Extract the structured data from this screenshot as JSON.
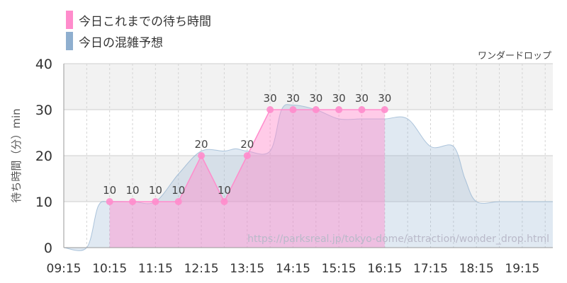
{
  "legend": [
    {
      "label": "今日これまでの待ち時間",
      "color": "#ff8ccc"
    },
    {
      "label": "今日の混雑予想",
      "color": "#8fafcf"
    }
  ],
  "attraction_name": "ワンダードロップ",
  "source_url": "https://parksreal.jp/tokyo-dome/attraction/wonder_drop.html",
  "chart_data": {
    "type": "area",
    "ylabel": "待ち時間（分）min",
    "ylim": [
      0,
      40
    ],
    "yticks": [
      0,
      10,
      20,
      30,
      40
    ],
    "x_range": [
      "09:15",
      "19:55"
    ],
    "xticks": [
      "09:15",
      "10:15",
      "11:15",
      "12:15",
      "13:15",
      "14:15",
      "15:15",
      "16:15",
      "17:15",
      "18:15",
      "19:15"
    ],
    "grid": true,
    "series": [
      {
        "name": "今日これまでの待ち時間",
        "color": "#ff8ccc",
        "x": [
          "10:15",
          "10:45",
          "11:15",
          "11:45",
          "12:15",
          "12:45",
          "13:15",
          "13:45",
          "14:15",
          "14:45",
          "15:15",
          "15:45",
          "16:15"
        ],
        "values": [
          10,
          10,
          10,
          10,
          20,
          10,
          20,
          30,
          30,
          30,
          30,
          30,
          30
        ],
        "labels": [
          "10",
          "10",
          "10",
          "10",
          "20",
          "10",
          "20",
          "30",
          "30",
          "30",
          "30",
          "30",
          "30"
        ]
      },
      {
        "name": "今日の混雑予想",
        "color": "#8fafcf",
        "x": [
          "09:15",
          "09:45",
          "10:00",
          "10:15",
          "10:45",
          "11:15",
          "11:45",
          "12:15",
          "12:45",
          "13:00",
          "13:15",
          "13:45",
          "14:00",
          "14:15",
          "14:45",
          "15:15",
          "15:45",
          "16:15",
          "16:45",
          "17:15",
          "17:45",
          "18:00",
          "18:15",
          "18:45",
          "19:15",
          "19:55"
        ],
        "values": [
          0,
          0,
          9,
          10,
          10,
          10,
          16,
          21,
          21,
          21.5,
          21,
          21,
          30,
          31,
          30,
          28,
          28,
          28,
          28,
          22,
          22,
          15,
          10,
          10,
          10,
          10
        ]
      }
    ]
  }
}
